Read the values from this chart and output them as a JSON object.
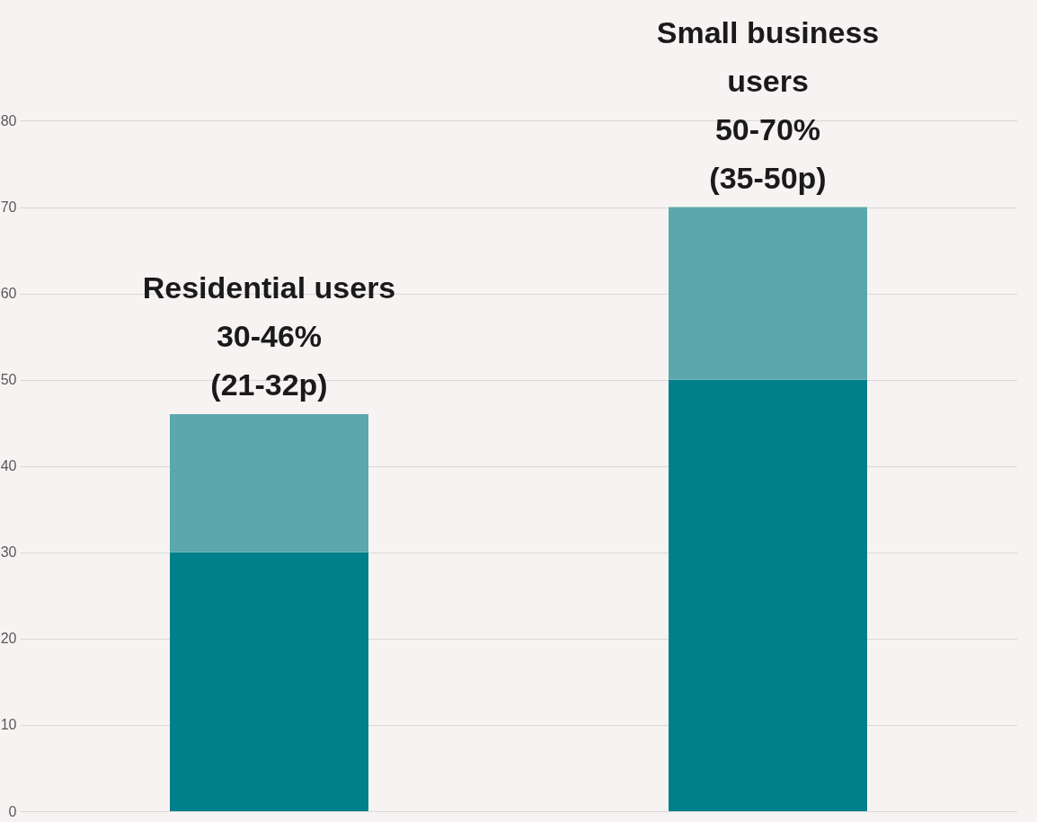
{
  "chart_data": {
    "type": "bar",
    "categories": [
      null,
      null
    ],
    "stacked": true,
    "series": [
      {
        "color": "#00808a",
        "values": [
          30,
          50
        ]
      },
      {
        "color": "#5aa8ae",
        "values": [
          16,
          20
        ]
      }
    ],
    "ylim": [
      0,
      94
    ],
    "yticks": [
      0,
      10,
      20,
      30,
      40,
      50,
      60,
      70,
      80
    ],
    "grid": "y",
    "legend": false,
    "annotations": [
      "Residential users\n30-46%\n(21-32p)",
      "Small business\nusers\n50-70%\n(35-50p)"
    ]
  }
}
